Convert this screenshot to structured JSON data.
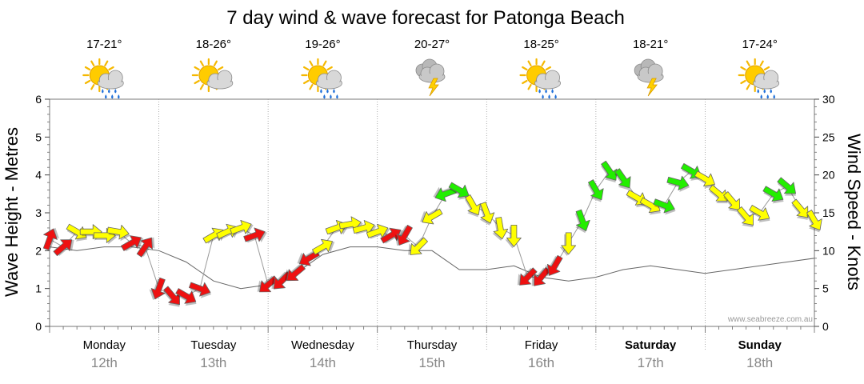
{
  "chart_data": {
    "type": "line",
    "title": "7 day wind & wave forecast for Patonga Beach",
    "ylabel_left": "Wave Height - Metres",
    "ylabel_right": "Wind Speed - Knots",
    "ylim_left": [
      0,
      6
    ],
    "ylim_right": [
      0,
      30
    ],
    "yticks_left": [
      "0",
      "1",
      "2",
      "3",
      "4",
      "5",
      "6"
    ],
    "yticks_right": [
      "0",
      "5",
      "10",
      "15",
      "20",
      "25",
      "30"
    ],
    "watermark": "www.seabreeze.com.au",
    "grid": true,
    "days": [
      {
        "name": "Monday",
        "date": "12th",
        "temp": "17-21°",
        "weather": "partly-cloudy-rain-icon",
        "bold": false
      },
      {
        "name": "Tuesday",
        "date": "13th",
        "temp": "18-26°",
        "weather": "partly-cloudy-icon",
        "bold": false
      },
      {
        "name": "Wednesday",
        "date": "14th",
        "temp": "19-26°",
        "weather": "partly-cloudy-rain-icon",
        "bold": false
      },
      {
        "name": "Thursday",
        "date": "15th",
        "temp": "20-27°",
        "weather": "storm-cloud-icon",
        "bold": false
      },
      {
        "name": "Friday",
        "date": "16th",
        "temp": "18-25°",
        "weather": "partly-cloudy-rain-icon",
        "bold": false
      },
      {
        "name": "Saturday",
        "date": "17th",
        "temp": "18-21°",
        "weather": "storm-cloud-icon",
        "bold": true
      },
      {
        "name": "Sunday",
        "date": "18th",
        "temp": "17-24°",
        "weather": "partly-cloudy-rain-icon",
        "bold": true
      }
    ],
    "series": [
      {
        "name": "Wave Height",
        "units": "m",
        "x_hours": [
          0,
          6,
          12,
          18,
          24,
          30,
          36,
          42,
          48,
          54,
          60,
          66,
          72,
          78,
          84,
          90,
          96,
          102,
          108,
          114,
          120,
          126,
          132,
          138,
          144,
          150,
          156,
          162,
          168
        ],
        "values": [
          2.1,
          2.0,
          2.1,
          2.1,
          2.0,
          1.7,
          1.2,
          1.0,
          1.1,
          1.4,
          1.9,
          2.1,
          2.1,
          2.0,
          2.0,
          1.5,
          1.5,
          1.6,
          1.3,
          1.2,
          1.3,
          1.5,
          1.6,
          1.5,
          1.4,
          1.5,
          1.6,
          1.7,
          1.8
        ]
      },
      {
        "name": "Wind Speed",
        "units": "knots",
        "x_hours": [
          0,
          3,
          6,
          9,
          12,
          15,
          18,
          21,
          24,
          27,
          30,
          33,
          36,
          39,
          42,
          45,
          48,
          51,
          54,
          57,
          60,
          63,
          66,
          69,
          72,
          75,
          78,
          81,
          84,
          87,
          90,
          93,
          96,
          99,
          102,
          105,
          108,
          111,
          114,
          117,
          120,
          123,
          126,
          129,
          132,
          135,
          138,
          141,
          144,
          147,
          150,
          153,
          156,
          159,
          162,
          165,
          168
        ],
        "values": [
          11.5,
          10.5,
          12.5,
          12.5,
          12.0,
          12.5,
          11.0,
          10.5,
          5.0,
          4.0,
          4.0,
          5.0,
          12.0,
          12.5,
          13.0,
          12.0,
          5.5,
          6.0,
          7.0,
          9.0,
          10.5,
          13.0,
          13.5,
          13.0,
          12.5,
          12.0,
          12.0,
          10.5,
          14.5,
          17.5,
          18.0,
          16.0,
          15.0,
          13.0,
          12.0,
          6.5,
          6.5,
          8.0,
          11.0,
          14.0,
          18.0,
          20.5,
          19.5,
          17.0,
          16.0,
          16.0,
          19.0,
          20.5,
          19.5,
          17.5,
          16.5,
          14.5,
          15.0,
          17.5,
          18.5,
          15.5,
          14.0
        ],
        "colors": [
          "red",
          "red",
          "yellow",
          "yellow",
          "yellow",
          "yellow",
          "red",
          "red",
          "red",
          "red",
          "red",
          "red",
          "yellow",
          "yellow",
          "yellow",
          "red",
          "red",
          "red",
          "red",
          "red",
          "yellow",
          "yellow",
          "yellow",
          "yellow",
          "yellow",
          "red",
          "red",
          "yellow",
          "yellow",
          "green",
          "green",
          "yellow",
          "yellow",
          "yellow",
          "yellow",
          "red",
          "red",
          "red",
          "yellow",
          "green",
          "green",
          "green",
          "green",
          "yellow",
          "yellow",
          "green",
          "green",
          "green",
          "yellow",
          "yellow",
          "yellow",
          "yellow",
          "yellow",
          "green",
          "green",
          "yellow",
          "yellow"
        ],
        "directions_deg": [
          200,
          230,
          300,
          270,
          270,
          280,
          240,
          215,
          20,
          320,
          300,
          290,
          240,
          245,
          250,
          250,
          50,
          45,
          50,
          60,
          240,
          250,
          260,
          255,
          250,
          240,
          30,
          45,
          60,
          70,
          300,
          330,
          340,
          350,
          0,
          45,
          40,
          30,
          0,
          340,
          330,
          325,
          325,
          300,
          300,
          290,
          285,
          300,
          300,
          310,
          320,
          320,
          300,
          300,
          310,
          320,
          330
        ]
      }
    ],
    "colors": {
      "wind_red": "#ee1111",
      "wind_yellow": "#ffff00",
      "wind_green": "#22ee00",
      "outline": "#666666",
      "grid": "#999999",
      "day_label": "#000000",
      "date_label": "#888888"
    }
  }
}
